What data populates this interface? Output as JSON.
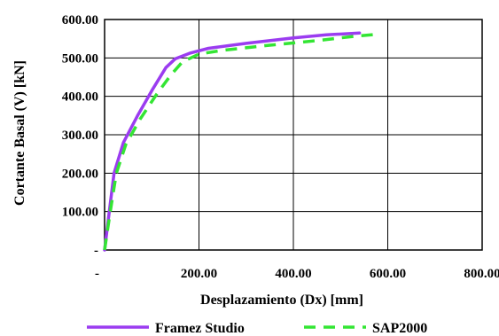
{
  "chart_data": {
    "type": "line",
    "xlabel": "Desplazamiento (Dx) [mm]",
    "ylabel": "Cortante Basal (V) [kN]",
    "xlim": [
      0,
      800
    ],
    "ylim": [
      0,
      600
    ],
    "x_tick_labels": [
      "-",
      "200.00",
      "400.00",
      "600.00",
      "800.00"
    ],
    "y_tick_labels": [
      "-",
      "100.00",
      "200.00",
      "300.00",
      "400.00",
      "500.00",
      "600.00"
    ],
    "grid": true,
    "legend_position": "bottom",
    "series": [
      {
        "name": "Framez Studio",
        "color": "#9b3cf0",
        "style": "solid",
        "x": [
          0,
          10,
          20,
          40,
          70,
          100,
          130,
          150,
          180,
          220,
          300,
          400,
          470,
          540
        ],
        "y": [
          0,
          100,
          200,
          280,
          350,
          415,
          475,
          498,
          512,
          525,
          538,
          552,
          560,
          565
        ]
      },
      {
        "name": "SAP2000",
        "color": "#33e533",
        "style": "dashed",
        "x": [
          0,
          12,
          25,
          45,
          75,
          110,
          140,
          165,
          200,
          250,
          350,
          450,
          520,
          580
        ],
        "y": [
          0,
          100,
          200,
          275,
          340,
          405,
          455,
          490,
          510,
          520,
          533,
          545,
          555,
          562
        ]
      }
    ]
  }
}
